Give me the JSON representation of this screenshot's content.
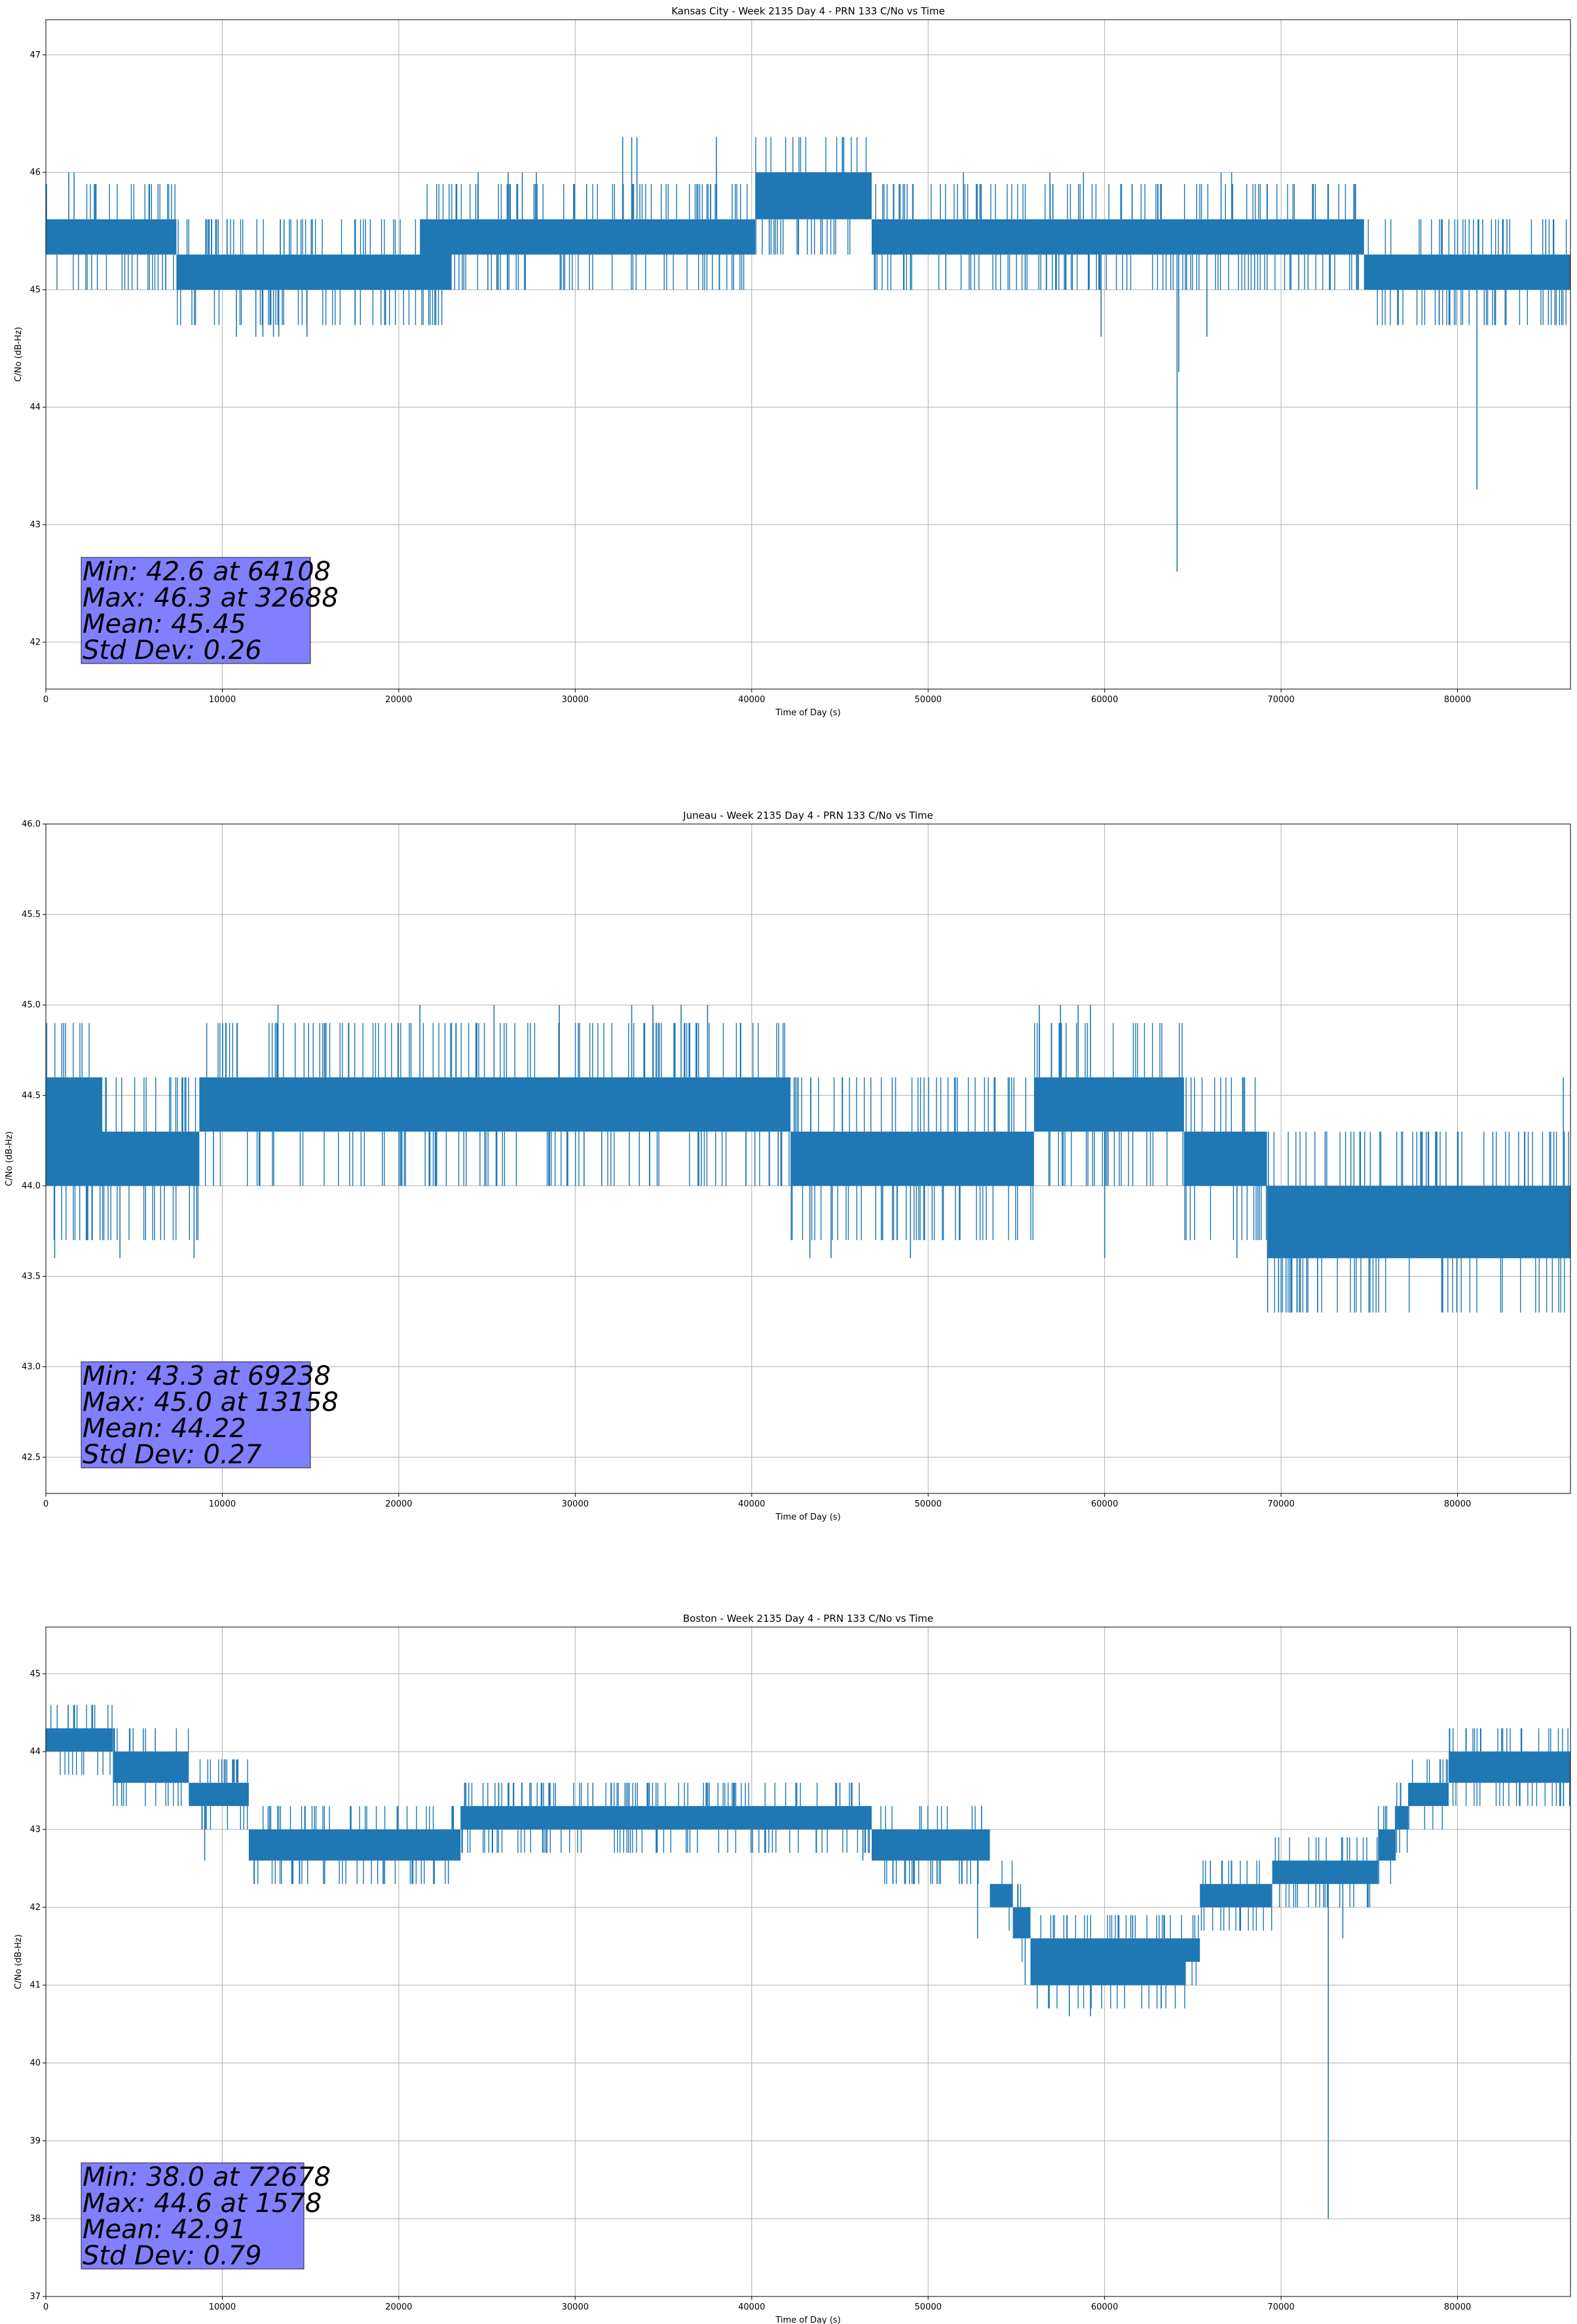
{
  "chart_data": [
    {
      "type": "line",
      "title": "Kansas City - Week 2135 Day 4 - PRN 133 C/No vs Time",
      "xlabel": "Time of Day (s)",
      "ylabel": "C/No (dB-Hz)",
      "xlim": [
        0,
        86400
      ],
      "ylim": [
        41.6,
        47.3
      ],
      "xticks": [
        0,
        10000,
        20000,
        30000,
        40000,
        50000,
        60000,
        70000,
        80000
      ],
      "yticks": [
        42,
        43,
        44,
        45,
        46,
        47
      ],
      "ytick_labels": [
        "42",
        "43",
        "44",
        "45",
        "46",
        "47"
      ],
      "grid": true,
      "color": "#1f77b4",
      "stats_lines": [
        "Min: 42.6 at 64108",
        "Max: 46.3 at 32688",
        "Mean: 45.45",
        "Std Dev: 0.26"
      ],
      "stats_box_color": "#8080ff",
      "band": {
        "x": [
          0,
          7300,
          7400,
          15000,
          19000,
          21200,
          23000,
          25000,
          40200,
          46800,
          47200,
          58500,
          72000,
          74700,
          86400
        ],
        "low": [
          45.3,
          45.3,
          45.0,
          45.0,
          45.0,
          45.0,
          45.3,
          45.3,
          45.6,
          45.3,
          45.3,
          45.3,
          45.3,
          45.0,
          45.0
        ],
        "high": [
          45.6,
          45.6,
          45.3,
          45.3,
          45.3,
          45.6,
          45.6,
          45.6,
          46.0,
          45.6,
          45.6,
          45.6,
          45.6,
          45.3,
          45.3
        ]
      },
      "spikes": [
        [
          1300,
          46.0
        ],
        [
          1600,
          46.0
        ],
        [
          6800,
          45.0
        ],
        [
          9200,
          45.6
        ],
        [
          10800,
          44.6
        ],
        [
          11900,
          44.6
        ],
        [
          12300,
          44.6
        ],
        [
          12900,
          44.6
        ],
        [
          13200,
          44.6
        ],
        [
          13500,
          45.6
        ],
        [
          14800,
          44.6
        ],
        [
          24500,
          46.0
        ],
        [
          26200,
          46.0
        ],
        [
          27000,
          46.0
        ],
        [
          27800,
          46.0
        ],
        [
          30300,
          45.3
        ],
        [
          30800,
          45.3
        ],
        [
          32000,
          45.3
        ],
        [
          32688,
          46.3
        ],
        [
          33200,
          46.3
        ],
        [
          33500,
          46.3
        ],
        [
          38000,
          46.3
        ],
        [
          39300,
          45.3
        ],
        [
          40800,
          46.0
        ],
        [
          41500,
          46.0
        ],
        [
          42200,
          46.0
        ],
        [
          43500,
          46.0
        ],
        [
          44000,
          45.3
        ],
        [
          47000,
          45.0
        ],
        [
          49000,
          45.0
        ],
        [
          51000,
          45.0
        ],
        [
          52000,
          46.0
        ],
        [
          55500,
          45.0
        ],
        [
          56900,
          46.0
        ],
        [
          58800,
          46.0
        ],
        [
          59800,
          44.6
        ],
        [
          64108,
          42.6
        ],
        [
          64200,
          44.3
        ],
        [
          65800,
          44.6
        ],
        [
          66600,
          46.0
        ],
        [
          67200,
          46.0
        ],
        [
          68500,
          45.0
        ],
        [
          71000,
          45.0
        ],
        [
          80000,
          45.6
        ],
        [
          81100,
          43.3
        ],
        [
          82800,
          45.6
        ],
        [
          85000,
          45.6
        ]
      ]
    },
    {
      "type": "line",
      "title": "Juneau - Week 2135 Day 4 - PRN 133 C/No vs Time",
      "xlabel": "Time of Day (s)",
      "ylabel": "C/No (dB-Hz)",
      "xlim": [
        0,
        86400
      ],
      "ylim": [
        42.3,
        46.0
      ],
      "xticks": [
        0,
        10000,
        20000,
        30000,
        40000,
        50000,
        60000,
        70000,
        80000
      ],
      "yticks": [
        42.5,
        43.0,
        43.5,
        44.0,
        44.5,
        45.0,
        45.5,
        46.0
      ],
      "ytick_labels": [
        "42.5",
        "43.0",
        "43.5",
        "44.0",
        "44.5",
        "45.0",
        "45.5",
        "46.0"
      ],
      "grid": true,
      "color": "#1f77b4",
      "stats_lines": [
        "Min: 43.3 at 69238",
        "Max: 45.0 at 13158",
        "Mean: 44.22",
        "Std Dev: 0.27"
      ],
      "stats_box_color": "#8080ff",
      "band": {
        "x": [
          0,
          3000,
          3200,
          8500,
          8700,
          18500,
          19000,
          41500,
          42200,
          55500,
          56000,
          64000,
          64500,
          68500,
          69200,
          86400
        ],
        "low": [
          44.0,
          44.0,
          44.0,
          44.0,
          44.3,
          44.3,
          44.3,
          44.3,
          44.0,
          44.0,
          44.3,
          44.3,
          44.0,
          44.0,
          43.6,
          43.6
        ],
        "high": [
          44.6,
          44.6,
          44.3,
          44.3,
          44.6,
          44.6,
          44.6,
          44.6,
          44.3,
          44.3,
          44.6,
          44.6,
          44.3,
          44.3,
          44.0,
          44.0
        ]
      },
      "spikes": [
        [
          500,
          43.6
        ],
        [
          4200,
          43.6
        ],
        [
          8400,
          43.6
        ],
        [
          13158,
          45.0
        ],
        [
          21200,
          45.0
        ],
        [
          25400,
          45.0
        ],
        [
          29100,
          45.0
        ],
        [
          30500,
          44.0
        ],
        [
          31500,
          44.0
        ],
        [
          33200,
          45.0
        ],
        [
          34400,
          45.0
        ],
        [
          36000,
          45.0
        ],
        [
          37500,
          45.0
        ],
        [
          41500,
          44.0
        ],
        [
          43300,
          43.6
        ],
        [
          44500,
          43.6
        ],
        [
          49000,
          43.6
        ],
        [
          56300,
          45.0
        ],
        [
          57500,
          45.0
        ],
        [
          58500,
          45.0
        ],
        [
          59200,
          45.0
        ],
        [
          60000,
          43.6
        ],
        [
          67500,
          43.6
        ],
        [
          69238,
          43.3
        ],
        [
          72500,
          44.3
        ],
        [
          74500,
          44.3
        ],
        [
          78000,
          44.3
        ],
        [
          80000,
          44.3
        ],
        [
          82000,
          44.3
        ],
        [
          84500,
          43.6
        ],
        [
          86000,
          44.6
        ]
      ]
    },
    {
      "type": "line",
      "title": "Boston - Week 2135 Day 4 - PRN 133 C/No vs Time",
      "xlabel": "Time of Day (s)",
      "ylabel": "C/No (dB-Hz)",
      "xlim": [
        0,
        86400
      ],
      "ylim": [
        37,
        45.6
      ],
      "xticks": [
        0,
        10000,
        20000,
        30000,
        40000,
        50000,
        60000,
        70000,
        80000
      ],
      "yticks": [
        37,
        38,
        39,
        40,
        41,
        42,
        43,
        44,
        45
      ],
      "ytick_labels": [
        "37",
        "38",
        "39",
        "40",
        "41",
        "42",
        "43",
        "44",
        "45"
      ],
      "grid": true,
      "color": "#1f77b4",
      "stats_lines": [
        "Min: 38.0 at 72678",
        "Max: 44.6 at 1578",
        "Mean: 42.91",
        "Std Dev: 0.79"
      ],
      "stats_box_color": "#8080ff",
      "band": {
        "x": [
          0,
          3200,
          3800,
          7600,
          8100,
          11000,
          11500,
          23000,
          23500,
          46200,
          46800,
          52000,
          53500,
          54800,
          55800,
          61000,
          62000,
          64600,
          65400,
          69000,
          69500,
          75000,
          75500,
          76500,
          77200,
          79500,
          80200,
          86400
        ],
        "low": [
          44.0,
          44.0,
          43.6,
          43.6,
          43.3,
          43.3,
          42.6,
          42.6,
          43.0,
          43.0,
          42.6,
          42.6,
          42.0,
          41.6,
          41.0,
          41.0,
          41.0,
          41.3,
          42.0,
          42.0,
          42.3,
          42.3,
          42.6,
          43.0,
          43.3,
          43.6,
          43.6,
          43.6
        ],
        "high": [
          44.3,
          44.3,
          44.0,
          44.0,
          43.6,
          43.6,
          43.0,
          43.0,
          43.3,
          43.3,
          43.0,
          43.0,
          42.3,
          42.0,
          41.6,
          41.6,
          41.6,
          41.6,
          42.3,
          42.3,
          42.6,
          42.6,
          43.0,
          43.3,
          43.6,
          44.0,
          44.0,
          44.0
        ]
      },
      "spikes": [
        [
          1578,
          44.6
        ],
        [
          4300,
          43.3
        ],
        [
          6200,
          44.3
        ],
        [
          9000,
          42.6
        ],
        [
          12600,
          43.3
        ],
        [
          14000,
          42.3
        ],
        [
          15800,
          42.3
        ],
        [
          19200,
          42.3
        ],
        [
          20800,
          42.3
        ],
        [
          23800,
          43.6
        ],
        [
          27500,
          43.6
        ],
        [
          31000,
          43.6
        ],
        [
          34200,
          43.6
        ],
        [
          39000,
          43.6
        ],
        [
          42500,
          43.6
        ],
        [
          45000,
          43.6
        ],
        [
          46300,
          42.6
        ],
        [
          48000,
          42.3
        ],
        [
          50500,
          42.3
        ],
        [
          52800,
          41.6
        ],
        [
          55500,
          41.0
        ],
        [
          58000,
          40.6
        ],
        [
          59200,
          40.6
        ],
        [
          59800,
          41.0
        ],
        [
          61000,
          41.0
        ],
        [
          63600,
          41.6
        ],
        [
          65000,
          41.6
        ],
        [
          66000,
          42.6
        ],
        [
          70000,
          42.6
        ],
        [
          72678,
          38.0
        ],
        [
          73500,
          41.6
        ],
        [
          82500,
          44.3
        ],
        [
          86000,
          43.3
        ]
      ]
    }
  ]
}
